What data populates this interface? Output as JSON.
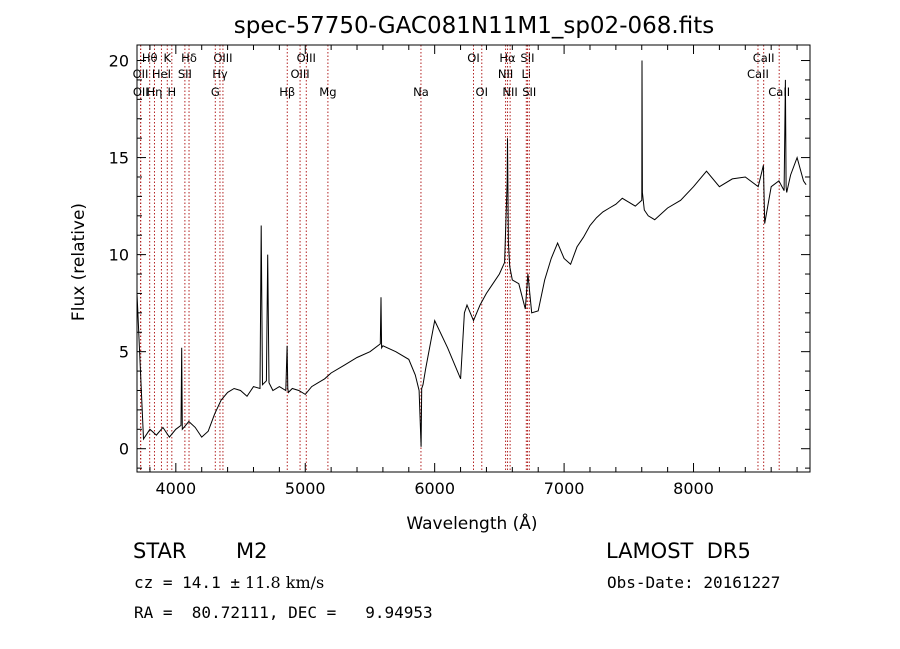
{
  "chart_data": {
    "type": "line",
    "title": "spec-57750-GAC081N11M1_sp02-068.fits",
    "xlabel": "Wavelength (Å)",
    "ylabel": "Flux (relative)",
    "xlim": [
      3700,
      8900
    ],
    "ylim": [
      -1.2,
      20.8
    ],
    "xticks": [
      4000,
      5000,
      6000,
      7000,
      8000
    ],
    "yticks": [
      0,
      5,
      10,
      15,
      20
    ],
    "grid": false,
    "legend": "none",
    "line_color": "#000000",
    "marker_color": "#b22222",
    "series": [
      {
        "x": [
          3700,
          3750,
          3800,
          3850,
          3900,
          3950,
          4000,
          4040,
          4045,
          4050,
          4100,
          4150,
          4200,
          4250,
          4300,
          4350,
          4400,
          4450,
          4500,
          4550,
          4600,
          4650,
          4660,
          4670,
          4700,
          4710,
          4720,
          4750,
          4800,
          4850,
          4860,
          4865,
          4870,
          4900,
          4950,
          5000,
          5050,
          5100,
          5150,
          5200,
          5300,
          5400,
          5500,
          5580,
          5585,
          5590,
          5600,
          5700,
          5800,
          5850,
          5880,
          5895,
          5900,
          5910,
          5930,
          6000,
          6100,
          6200,
          6230,
          6250,
          6300,
          6350,
          6400,
          6450,
          6500,
          6540,
          6560,
          6563,
          6570,
          6580,
          6600,
          6650,
          6700,
          6720,
          6750,
          6800,
          6850,
          6900,
          6950,
          7000,
          7050,
          7100,
          7150,
          7200,
          7250,
          7300,
          7350,
          7400,
          7450,
          7500,
          7550,
          7600,
          7602,
          7605,
          7620,
          7650,
          7700,
          7800,
          7900,
          8000,
          8100,
          8200,
          8300,
          8400,
          8500,
          8540,
          8550,
          8600,
          8660,
          8700,
          8710,
          8715,
          8720,
          8750,
          8800,
          8850,
          8870
        ],
        "y": [
          8.0,
          0.5,
          1.0,
          0.7,
          1.1,
          0.6,
          1.0,
          1.2,
          5.2,
          1.0,
          1.4,
          1.1,
          0.6,
          0.9,
          1.8,
          2.5,
          2.9,
          3.1,
          3.0,
          2.7,
          3.2,
          3.1,
          11.5,
          3.3,
          3.5,
          10.0,
          3.4,
          3.0,
          3.2,
          3.0,
          5.3,
          3.1,
          2.9,
          3.1,
          3.0,
          2.8,
          3.2,
          3.4,
          3.6,
          3.9,
          4.3,
          4.7,
          5.0,
          5.4,
          7.8,
          5.2,
          5.3,
          5.0,
          4.6,
          3.8,
          3.0,
          0.1,
          3.1,
          3.3,
          4.1,
          6.6,
          5.2,
          3.6,
          7.0,
          7.4,
          6.6,
          7.4,
          8.0,
          8.5,
          9.0,
          9.6,
          13.8,
          16.0,
          10.6,
          9.4,
          8.7,
          8.5,
          7.2,
          9.0,
          7.0,
          7.1,
          8.7,
          9.8,
          10.6,
          9.8,
          9.5,
          10.4,
          10.9,
          11.5,
          11.9,
          12.2,
          12.4,
          12.6,
          12.9,
          12.7,
          12.5,
          12.8,
          20.0,
          13.2,
          12.3,
          12.0,
          11.8,
          12.4,
          12.8,
          13.5,
          14.3,
          13.5,
          13.9,
          14.0,
          13.5,
          14.6,
          11.6,
          13.5,
          13.8,
          13.3,
          19.0,
          13.5,
          13.2,
          14.1,
          15.0,
          13.8,
          13.6
        ]
      }
    ],
    "line_markers": [
      {
        "label": "Hθ",
        "x": 3798,
        "row": 0
      },
      {
        "label": "K",
        "x": 3934,
        "row": 0
      },
      {
        "label": "Hδ",
        "x": 4102,
        "row": 0
      },
      {
        "label": "OIII",
        "x": 4364,
        "row": 0
      },
      {
        "label": "OIII",
        "x": 5008,
        "row": 0
      },
      {
        "label": "OI",
        "x": 6300,
        "row": 0
      },
      {
        "label": "Hα",
        "x": 6563,
        "row": 0
      },
      {
        "label": "SII",
        "x": 6717,
        "row": 0
      },
      {
        "label": "CaII",
        "x": 8542,
        "row": 0
      },
      {
        "label": "OII",
        "x": 3727,
        "row": 1
      },
      {
        "label": "HeI",
        "x": 3889,
        "row": 1
      },
      {
        "label": "SII",
        "x": 4070,
        "row": 1
      },
      {
        "label": "Hγ",
        "x": 4341,
        "row": 1
      },
      {
        "label": "OIII",
        "x": 4960,
        "row": 1
      },
      {
        "label": "NII",
        "x": 6548,
        "row": 1
      },
      {
        "label": "Li",
        "x": 6708,
        "row": 1
      },
      {
        "label": "CaII",
        "x": 8498,
        "row": 1
      },
      {
        "label": "OII",
        "x": 3729,
        "row": 2
      },
      {
        "label": "Hη",
        "x": 3835,
        "row": 2
      },
      {
        "label": "H",
        "x": 3969,
        "row": 2
      },
      {
        "label": "G",
        "x": 4305,
        "row": 2
      },
      {
        "label": "Hβ",
        "x": 4861,
        "row": 2
      },
      {
        "label": "Mg",
        "x": 5175,
        "row": 2
      },
      {
        "label": "Na",
        "x": 5894,
        "row": 2
      },
      {
        "label": "OI",
        "x": 6364,
        "row": 2
      },
      {
        "label": "NII",
        "x": 6583,
        "row": 2
      },
      {
        "label": "SII",
        "x": 6731,
        "row": 2
      },
      {
        "label": "CaII",
        "x": 8662,
        "row": 2
      }
    ]
  },
  "info": {
    "object_class": "STAR",
    "subclass": "M2",
    "survey": "LAMOST  DR5",
    "cz_prefix": "cz = 14.1 ",
    "cz_pm": "±",
    "cz_err": " 11.8 km/s",
    "obs_date": "Obs-Date: 20161227",
    "coords": "RA =  80.72111, DEC =   9.94953"
  }
}
